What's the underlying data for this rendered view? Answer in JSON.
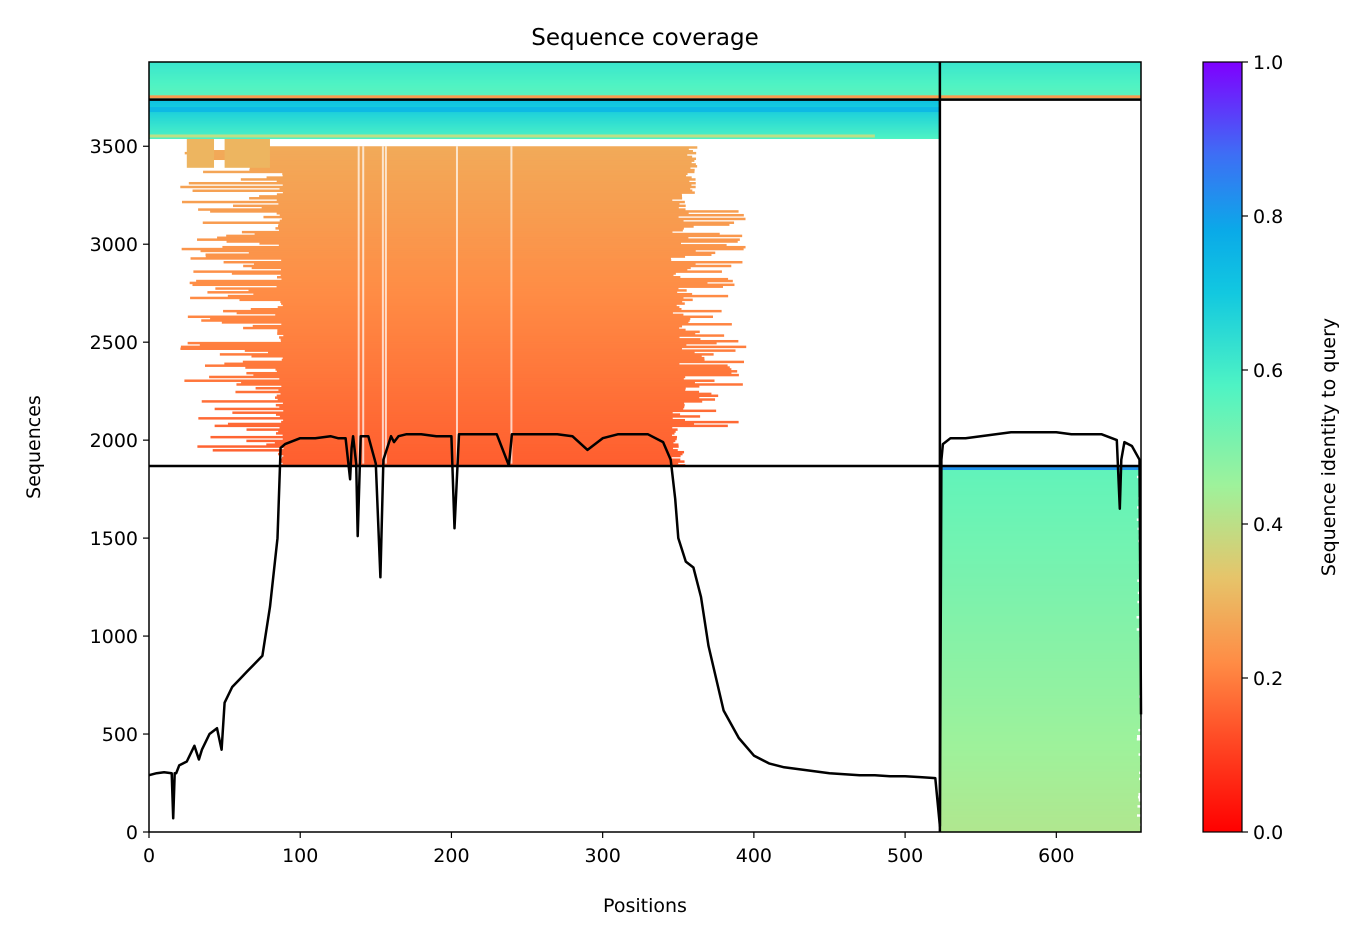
{
  "chart_data": {
    "type": "heatmap",
    "title": "Sequence coverage",
    "xlabel": "Positions",
    "ylabel": "Sequences",
    "xlim": [
      0,
      656
    ],
    "ylim": [
      0,
      3930
    ],
    "xticks": [
      0,
      100,
      200,
      300,
      400,
      500,
      600
    ],
    "yticks": [
      0,
      500,
      1000,
      1500,
      2000,
      2500,
      3000,
      3500
    ],
    "colorbar": {
      "label": "Sequence identity to query",
      "range": [
        0.0,
        1.0
      ],
      "ticks": [
        "0.0",
        "0.2",
        "0.4",
        "0.6",
        "0.8",
        "1.0"
      ],
      "colormap": "rainbow_r"
    },
    "chain_boundaries": {
      "x": [
        523
      ],
      "y": [
        1868,
        3738
      ]
    },
    "blocks": [
      {
        "name": "chain-B-paired",
        "x": [
          523,
          656
        ],
        "y": [
          0,
          1868
        ],
        "identity": [
          0.42,
          0.55
        ]
      },
      {
        "name": "chain-A-paired",
        "x": [
          80,
          350
        ],
        "y": [
          1868,
          3500
        ],
        "identity": [
          0.15,
          0.28
        ]
      },
      {
        "name": "chain-A-unpaired",
        "x": [
          0,
          523
        ],
        "y": [
          3540,
          3738
        ],
        "identity": [
          0.58,
          0.72
        ]
      },
      {
        "name": "chain-A-top",
        "x": [
          0,
          523
        ],
        "y": [
          3738,
          3930
        ],
        "identity": [
          0.55,
          0.62
        ]
      },
      {
        "name": "chain-B-top",
        "x": [
          523,
          656
        ],
        "y": [
          3738,
          3930
        ],
        "identity": [
          0.55,
          0.62
        ]
      }
    ],
    "coverage_line": {
      "x": [
        0,
        5,
        10,
        15,
        16,
        17,
        18,
        20,
        25,
        30,
        33,
        35,
        40,
        45,
        48,
        50,
        55,
        60,
        65,
        70,
        75,
        80,
        85,
        87,
        90,
        100,
        110,
        120,
        125,
        130,
        133,
        134,
        135,
        137,
        138,
        140,
        145,
        150,
        153,
        155,
        160,
        162,
        165,
        170,
        180,
        190,
        200,
        202,
        205,
        210,
        220,
        230,
        238,
        240,
        250,
        260,
        270,
        280,
        290,
        300,
        310,
        320,
        330,
        340,
        345,
        348,
        350,
        355,
        360,
        365,
        370,
        380,
        390,
        400,
        410,
        420,
        430,
        440,
        450,
        460,
        470,
        480,
        490,
        500,
        510,
        520,
        523,
        524,
        525,
        530,
        540,
        550,
        560,
        570,
        580,
        590,
        600,
        610,
        620,
        630,
        640,
        642,
        643,
        645,
        650,
        655,
        656
      ],
      "y": [
        290,
        300,
        305,
        300,
        70,
        300,
        300,
        340,
        360,
        440,
        370,
        420,
        500,
        530,
        420,
        660,
        740,
        780,
        820,
        860,
        900,
        1150,
        1500,
        1960,
        1980,
        2010,
        2010,
        2020,
        2010,
        2010,
        1800,
        1960,
        2020,
        1880,
        1510,
        2020,
        2020,
        1880,
        1300,
        1900,
        2020,
        1990,
        2020,
        2030,
        2030,
        2020,
        2020,
        1550,
        2030,
        2030,
        2030,
        2030,
        1870,
        2030,
        2030,
        2030,
        2030,
        2020,
        1950,
        2010,
        2030,
        2030,
        2030,
        1990,
        1900,
        1700,
        1500,
        1380,
        1350,
        1200,
        950,
        620,
        480,
        390,
        350,
        330,
        320,
        310,
        300,
        295,
        290,
        290,
        285,
        285,
        280,
        275,
        30,
        1900,
        1980,
        2010,
        2010,
        2020,
        2030,
        2040,
        2040,
        2040,
        2040,
        2030,
        2030,
        2030,
        2000,
        1650,
        1900,
        1990,
        1970,
        1900,
        600
      ]
    }
  }
}
